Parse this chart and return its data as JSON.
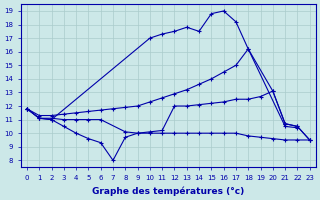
{
  "title": "Graphe des températures (°c)",
  "bg_color": "#cce8e8",
  "grid_color": "#aacccc",
  "line_color": "#0000aa",
  "ylim": [
    7.5,
    19.5
  ],
  "yticks": [
    8,
    9,
    10,
    11,
    12,
    13,
    14,
    15,
    16,
    17,
    18,
    19
  ],
  "xticks": [
    0,
    1,
    2,
    3,
    4,
    5,
    6,
    7,
    8,
    9,
    10,
    11,
    12,
    13,
    14,
    15,
    16,
    17,
    18,
    19,
    20,
    21,
    22,
    23
  ],
  "line1_x": [
    0,
    1,
    2,
    10,
    11,
    12,
    13,
    14,
    15,
    16,
    17,
    18,
    20,
    21,
    22,
    23
  ],
  "line1_y": [
    11.8,
    11.1,
    11.0,
    17.0,
    17.3,
    17.5,
    17.8,
    17.5,
    18.8,
    19.0,
    18.2,
    16.2,
    13.1,
    10.7,
    10.5,
    9.5
  ],
  "line2_x": [
    0,
    1,
    2,
    3,
    4,
    5,
    6,
    7,
    8,
    9,
    10,
    11,
    12,
    13,
    14,
    15,
    16,
    17,
    18,
    21,
    22
  ],
  "line2_y": [
    11.8,
    11.3,
    11.3,
    11.4,
    11.5,
    11.6,
    11.7,
    11.8,
    11.9,
    12.0,
    12.3,
    12.6,
    12.9,
    13.2,
    13.6,
    14.0,
    14.5,
    15.0,
    16.2,
    10.5,
    10.4
  ],
  "line3_x": [
    0,
    1,
    2,
    3,
    4,
    5,
    6,
    7,
    8,
    9,
    10,
    11,
    12,
    13,
    14,
    15,
    16,
    17,
    18,
    19,
    20,
    21,
    22,
    23
  ],
  "line3_y": [
    11.8,
    11.1,
    11.0,
    10.5,
    10.0,
    9.6,
    9.3,
    8.0,
    9.7,
    10.0,
    10.1,
    10.2,
    12.0,
    12.0,
    12.1,
    12.2,
    12.3,
    12.5,
    12.5,
    12.7,
    13.1,
    10.7,
    10.5,
    9.5
  ],
  "line4_x": [
    0,
    1,
    2,
    3,
    4,
    5,
    6,
    8,
    9,
    10,
    11,
    12,
    13,
    14,
    15,
    16,
    17,
    18,
    19,
    20,
    21,
    22,
    23
  ],
  "line4_y": [
    11.8,
    11.1,
    11.1,
    11.0,
    11.0,
    11.0,
    11.0,
    10.1,
    10.0,
    10.0,
    10.0,
    10.0,
    10.0,
    10.0,
    10.0,
    10.0,
    10.0,
    9.8,
    9.7,
    9.6,
    9.5,
    9.5,
    9.5
  ]
}
